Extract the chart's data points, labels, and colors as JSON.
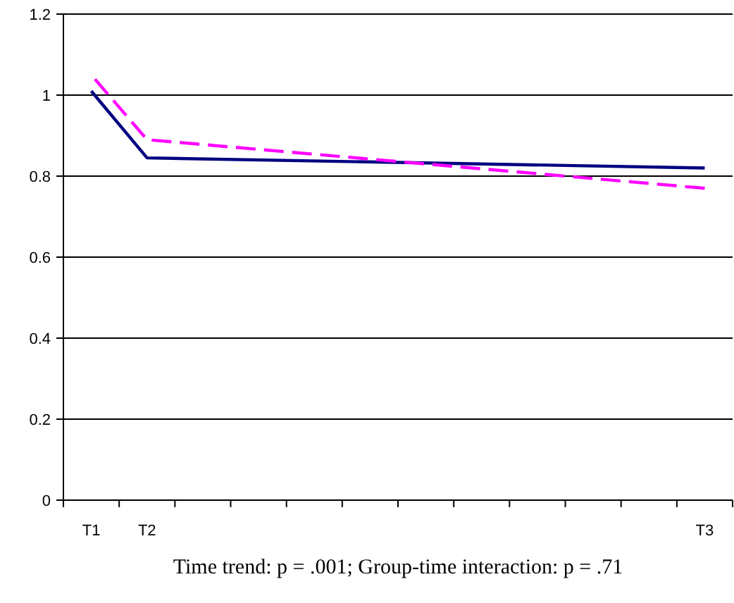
{
  "chart_data": {
    "type": "line",
    "categories": [
      "T1",
      "T2",
      null,
      null,
      null,
      null,
      null,
      null,
      null,
      null,
      null,
      "T3"
    ],
    "series": [
      {
        "color": "#000080",
        "values": [
          1.01,
          0.845,
          null,
          null,
          null,
          null,
          null,
          null,
          null,
          null,
          null,
          0.82
        ],
        "line_style": "solid"
      },
      {
        "color": "#ff00ff",
        "values": [
          1.05,
          0.89,
          null,
          null,
          null,
          null,
          null,
          null,
          null,
          null,
          null,
          0.77
        ],
        "line_style": "dashed"
      }
    ],
    "ylim": [
      0,
      1.2
    ],
    "yticks": [
      0,
      0.2,
      0.4,
      0.6,
      0.8,
      1,
      1.2
    ],
    "grid": "y",
    "marker": "none",
    "annotations": [
      "Time trend: p = .001; Group-time interaction: p = .71"
    ]
  }
}
